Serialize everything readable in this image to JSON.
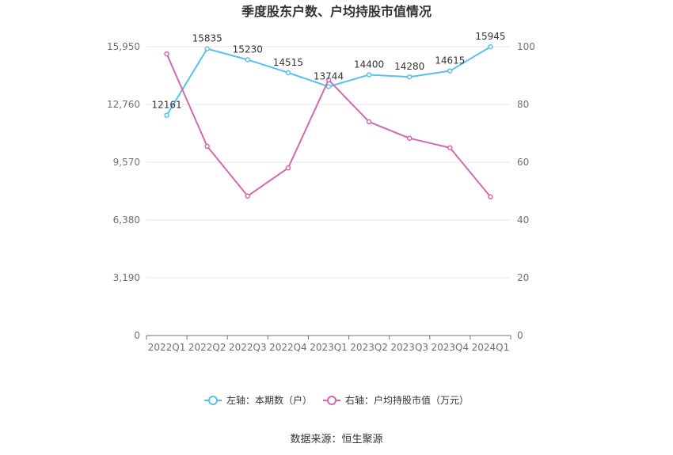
{
  "chart_data": {
    "type": "line",
    "title": "季度股东户数、户均持股市值情况",
    "categories": [
      "2022Q1",
      "2022Q2",
      "2022Q3",
      "2022Q4",
      "2023Q1",
      "2023Q2",
      "2023Q3",
      "2023Q4",
      "2024Q1"
    ],
    "y_left": {
      "ticks": [
        "0",
        "3,190",
        "6,380",
        "9,570",
        "12,760",
        "15,950"
      ],
      "range": [
        0,
        15950
      ]
    },
    "y_right": {
      "ticks": [
        "0",
        "20",
        "40",
        "60",
        "80",
        "100"
      ],
      "range": [
        0,
        100
      ]
    },
    "series": [
      {
        "name": "左轴：本期数（户）",
        "axis": "left",
        "color": "#5bc0eb",
        "values": [
          12161,
          15835,
          15230,
          14515,
          13744,
          14400,
          14280,
          14615,
          15945
        ],
        "labels": [
          "12161",
          "15835",
          "15230",
          "14515",
          "13744",
          "14400",
          "14280",
          "14615",
          "15945"
        ]
      },
      {
        "name": "右轴：户均持股市值（万元）",
        "axis": "right",
        "color": "#d16aae",
        "values": [
          97.5,
          65.5,
          48.3,
          58.0,
          88.5,
          74.0,
          68.3,
          65.0,
          48.0
        ]
      }
    ],
    "grid": true,
    "legend": "bottom-center"
  },
  "source": "数据来源：恒生聚源"
}
